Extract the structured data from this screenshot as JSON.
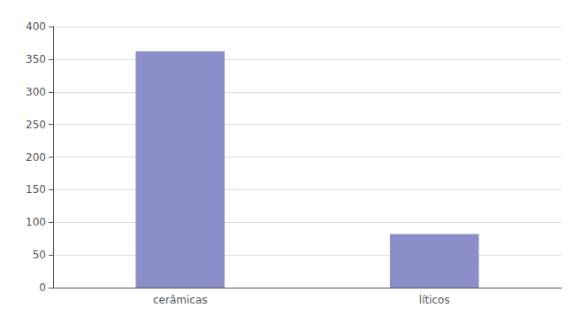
{
  "chart_data": {
    "type": "bar",
    "categories": [
      "cerâmicas",
      "líticos"
    ],
    "values": [
      362,
      82
    ],
    "color": "#8b8ec8",
    "ylim": [
      0,
      400
    ],
    "yticks": [
      0,
      50,
      100,
      150,
      200,
      250,
      300,
      350,
      400
    ],
    "grid": true
  }
}
